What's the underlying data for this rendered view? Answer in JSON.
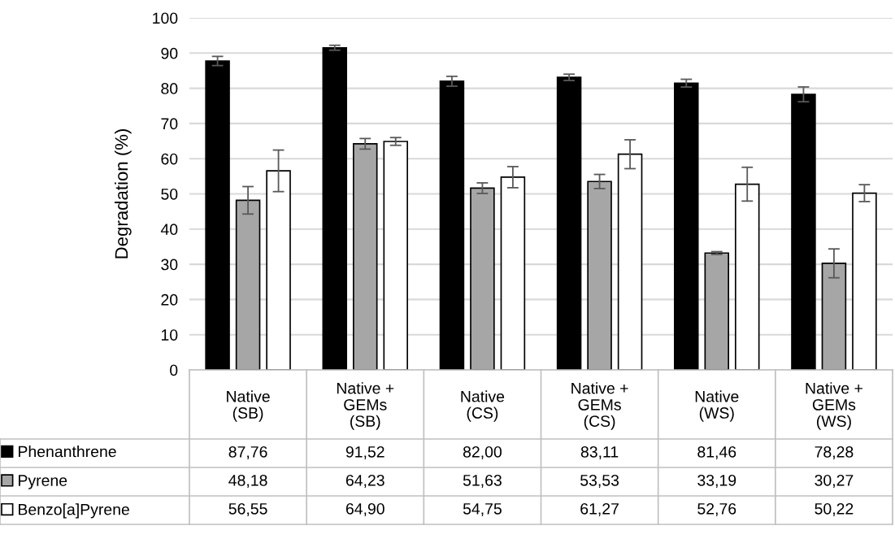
{
  "chart_data": {
    "type": "bar",
    "ylabel": "Degradation (%)",
    "categories": [
      "Native\n(SB)",
      "Native +\nGEMs\n(SB)",
      "Native\n(CS)",
      "Native +\nGEMs\n(CS)",
      "Native\n(WS)",
      "Native +\nGEMs\n(WS)"
    ],
    "series": [
      {
        "name": "Phenanthrene",
        "color": "#000000",
        "values": [
          87.76,
          91.52,
          82.0,
          83.11,
          81.46,
          78.28
        ],
        "errors": [
          1.3,
          0.7,
          1.4,
          0.9,
          1.1,
          2.1
        ],
        "value_labels": [
          "87,76",
          "91,52",
          "82,00",
          "83,11",
          "81,46",
          "78,28"
        ]
      },
      {
        "name": "Pyrene",
        "color": "#a6a6a6",
        "values": [
          48.18,
          64.23,
          51.63,
          53.53,
          33.19,
          30.27
        ],
        "errors": [
          3.9,
          1.5,
          1.5,
          2.0,
          0.4,
          4.1
        ],
        "value_labels": [
          "48,18",
          "64,23",
          "51,63",
          "53,53",
          "33,19",
          "30,27"
        ]
      },
      {
        "name": "Benzo[a]Pyrene",
        "color": "#ffffff",
        "values": [
          56.55,
          64.9,
          54.75,
          61.27,
          52.76,
          50.22
        ],
        "errors": [
          5.9,
          1.1,
          3.0,
          4.1,
          4.8,
          2.4
        ],
        "value_labels": [
          "56,55",
          "64,90",
          "54,75",
          "61,27",
          "52,76",
          "50,22"
        ]
      }
    ],
    "ylim": [
      0,
      100
    ],
    "yticks": [
      0,
      10,
      20,
      30,
      40,
      50,
      60,
      70,
      80,
      90,
      100
    ],
    "grid": "y",
    "legend": "bottom left"
  }
}
